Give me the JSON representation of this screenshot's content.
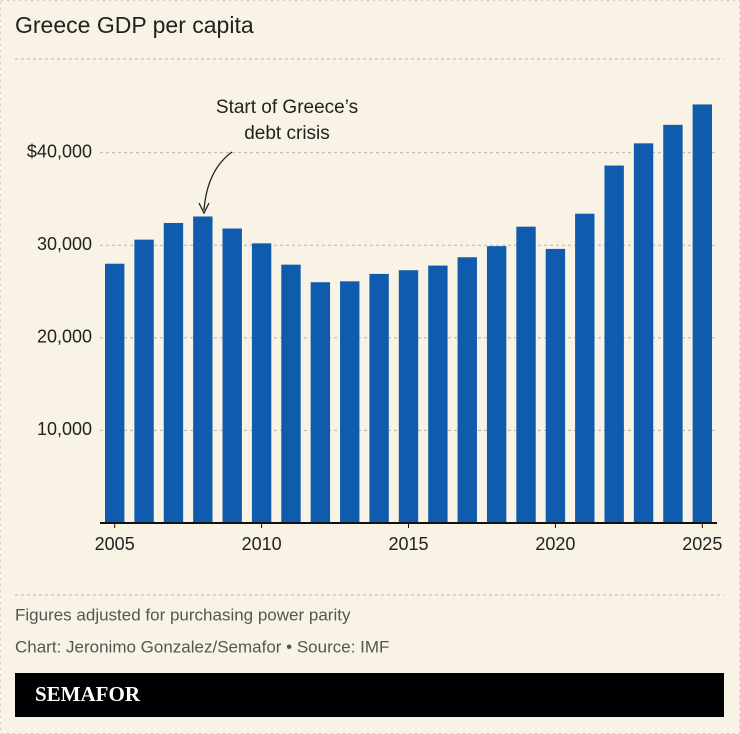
{
  "chart_data": {
    "type": "bar",
    "title": "Greece GDP per capita",
    "x": [
      2005,
      2006,
      2007,
      2008,
      2009,
      2010,
      2011,
      2012,
      2013,
      2014,
      2015,
      2016,
      2017,
      2018,
      2019,
      2020,
      2021,
      2022,
      2023,
      2024,
      2025
    ],
    "values": [
      28000,
      30600,
      32400,
      33100,
      31800,
      30200,
      27900,
      26000,
      26100,
      26900,
      27300,
      27800,
      28700,
      29900,
      32000,
      29600,
      33400,
      38600,
      41000,
      43000,
      45200
    ],
    "color": "#0f5cae",
    "xlim": [
      2004.5,
      2025.5
    ],
    "xticks": [
      2005,
      2010,
      2015,
      2020,
      2025
    ],
    "ylim": [
      0,
      50000
    ],
    "yticks": [
      {
        "value": 10000,
        "label": "10,000"
      },
      {
        "value": 20000,
        "label": "20,000"
      },
      {
        "value": 30000,
        "label": "30,000"
      },
      {
        "value": 40000,
        "label": "$40,000"
      }
    ],
    "grid": true,
    "annotation": [
      "Start of Greece’s",
      "debt crisis"
    ],
    "notes": [
      "Figures adjusted for purchasing power parity",
      "Chart: Jeronimo Gonzalez/Semafor • Source: IMF"
    ],
    "brand": "SEMAFOR"
  }
}
